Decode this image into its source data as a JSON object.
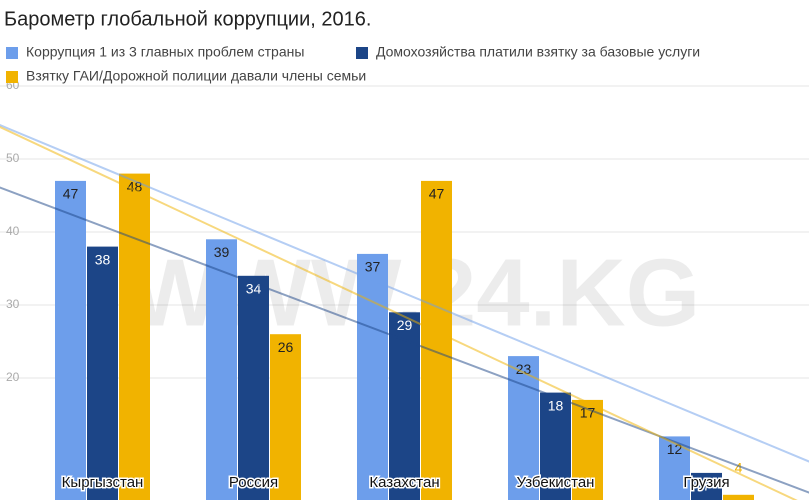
{
  "chart_data": {
    "type": "bar",
    "title": "Барометр глобальной коррупции, 2016.",
    "categories": [
      "Кыргызстан",
      "Россия",
      "Казахстан",
      "Узбекистан",
      "Грузия"
    ],
    "series": [
      {
        "name": "Коррупция 1 из 3 главных проблем страны",
        "color": "#6d9eeb",
        "values": [
          47,
          39,
          37,
          23,
          12
        ]
      },
      {
        "name": "Домохозяйства платили взятку за базовые услуги",
        "color": "#1c4587",
        "values": [
          38,
          34,
          29,
          18,
          7
        ]
      },
      {
        "name": "Взятку ГАИ/Дорожной полиции давали члены семьи",
        "color": "#f1b300",
        "values": [
          48,
          26,
          47,
          17,
          4
        ]
      }
    ],
    "ylim": [
      0,
      60
    ],
    "yticks": [
      20,
      30,
      40,
      50,
      60
    ],
    "grid": true,
    "trendlines": true,
    "watermark": "WWW.24.KG"
  }
}
